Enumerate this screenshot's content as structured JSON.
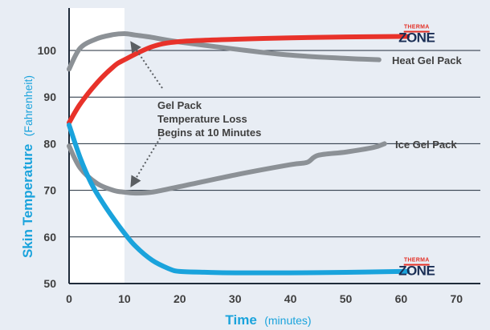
{
  "chart_data": {
    "type": "line",
    "title": "",
    "ylabel": "Skin Temperature",
    "ylabel_unit": "(Fahrenheit)",
    "xlabel": "Time",
    "xlabel_unit": "(minutes)",
    "xlim": [
      0,
      70
    ],
    "ylim": [
      50,
      105
    ],
    "xticks": [
      0,
      10,
      20,
      30,
      40,
      50,
      60,
      70
    ],
    "yticks": [
      50,
      60,
      70,
      80,
      90,
      100
    ],
    "grid": "horizontal",
    "highlight_region": [
      0,
      10
    ],
    "series": [
      {
        "key": "thermazone-heat",
        "color": "#e8322a",
        "x": [
          0,
          2,
          5,
          8,
          10,
          15,
          20,
          30,
          40,
          50,
          60,
          61
        ],
        "y": [
          84.5,
          88.5,
          93,
          96.5,
          98,
          100.8,
          101.9,
          102.4,
          102.7,
          102.9,
          103,
          103
        ]
      },
      {
        "name": "Heat Gel Pack",
        "color": "#8c9196",
        "x": [
          0,
          2,
          5,
          8,
          10,
          12,
          15,
          20,
          30,
          40,
          50,
          56
        ],
        "y": [
          96,
          100.5,
          102.5,
          103.4,
          103.6,
          103.3,
          102.8,
          101.8,
          100.3,
          99,
          98.3,
          98
        ]
      },
      {
        "name": "Ice Gel Pack",
        "color": "#8c9196",
        "x": [
          0,
          2,
          5,
          8,
          10,
          12,
          15,
          20,
          30,
          40,
          43,
          45,
          50,
          55,
          57
        ],
        "y": [
          79.5,
          74.8,
          71.5,
          70,
          69.6,
          69.4,
          69.6,
          70.8,
          73.3,
          75.5,
          76,
          77.5,
          78.2,
          79.2,
          80
        ]
      },
      {
        "key": "thermazone-cold",
        "color": "#1aa3dc",
        "x": [
          0,
          2,
          4,
          6,
          8,
          10,
          12,
          15,
          18,
          20,
          25,
          30,
          40,
          50,
          60,
          61
        ],
        "y": [
          84,
          77,
          71.5,
          67.5,
          64,
          60.8,
          58,
          55,
          53.2,
          52.6,
          52.4,
          52.3,
          52.3,
          52.4,
          52.6,
          52.6
        ]
      }
    ],
    "annotation": {
      "lines": [
        "Gel Pack",
        "Temperature Loss",
        "Begins at 10 Minutes"
      ],
      "arrow_targets": [
        [
          11,
          103
        ],
        [
          11,
          70
        ]
      ]
    },
    "logos": [
      {
        "key": "logo-heat",
        "top": "THERMA",
        "bottom": "ZONE",
        "x": 62.8,
        "y": 103
      },
      {
        "key": "logo-cold",
        "top": "THERMA",
        "bottom": "ZONE",
        "x": 62.8,
        "y": 53
      }
    ]
  }
}
